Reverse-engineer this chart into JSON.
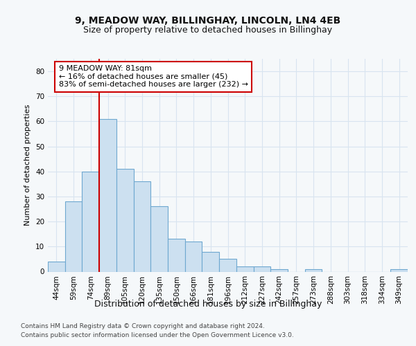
{
  "title1": "9, MEADOW WAY, BILLINGHAY, LINCOLN, LN4 4EB",
  "title2": "Size of property relative to detached houses in Billinghay",
  "xlabel": "Distribution of detached houses by size in Billinghay",
  "ylabel": "Number of detached properties",
  "categories": [
    "44sqm",
    "59sqm",
    "74sqm",
    "89sqm",
    "105sqm",
    "120sqm",
    "135sqm",
    "150sqm",
    "166sqm",
    "181sqm",
    "196sqm",
    "212sqm",
    "227sqm",
    "242sqm",
    "257sqm",
    "273sqm",
    "288sqm",
    "303sqm",
    "318sqm",
    "334sqm",
    "349sqm"
  ],
  "values": [
    4,
    28,
    40,
    61,
    41,
    36,
    26,
    13,
    12,
    8,
    5,
    2,
    2,
    1,
    0,
    1,
    0,
    0,
    0,
    0,
    1
  ],
  "bar_color": "#cce0f0",
  "bar_edge_color": "#6ea8d0",
  "vline_color": "#cc0000",
  "vline_position": 2.5,
  "annotation_text": "9 MEADOW WAY: 81sqm\n← 16% of detached houses are smaller (45)\n83% of semi-detached houses are larger (232) →",
  "annotation_box_facecolor": "#ffffff",
  "annotation_box_edgecolor": "#cc0000",
  "ylim": [
    0,
    85
  ],
  "yticks": [
    0,
    10,
    20,
    30,
    40,
    50,
    60,
    70,
    80
  ],
  "background_color": "#f5f8fa",
  "plot_background": "#f5f8fa",
  "grid_color": "#d8e4f0",
  "title1_fontsize": 10,
  "title2_fontsize": 9,
  "xlabel_fontsize": 9,
  "ylabel_fontsize": 8,
  "tick_fontsize": 7.5,
  "annotation_fontsize": 8,
  "footer_fontsize": 6.5,
  "footer1": "Contains HM Land Registry data © Crown copyright and database right 2024.",
  "footer2": "Contains public sector information licensed under the Open Government Licence v3.0."
}
